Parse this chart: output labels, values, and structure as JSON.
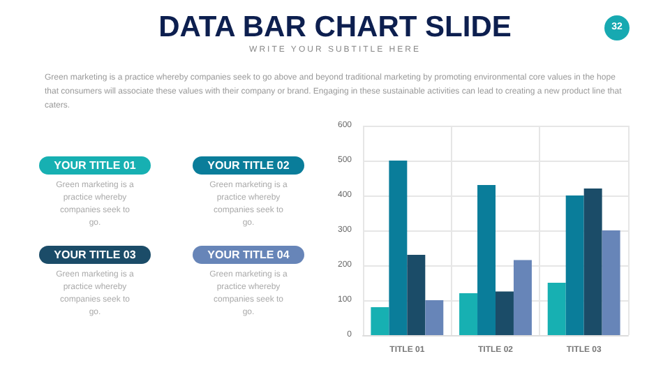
{
  "chart_data": {
    "type": "bar",
    "title": "DATA BAR CHART SLIDE",
    "subtitle": "WRITE YOUR SUBTITLE HERE",
    "annotations": [
      "32",
      "Green marketing is a practice whereby companies seek to go above and beyond traditional marketing by promoting environmental core values in the hope that consumers will associate these values with their company or brand. Engaging in these sustainable activities can lead to creating a new product line that caters.",
      "Green marketing is a practice whereby companies seek to go.",
      "Green marketing is a practice whereby companies seek to go.",
      "Green marketing is a practice whereby companies seek to go.",
      "Green marketing is a practice whereby companies seek to go."
    ],
    "categories": [
      "TITLE 01",
      "TITLE 02",
      "TITLE 03"
    ],
    "series": [
      {
        "name": "YOUR TITLE 01",
        "color": "#17b0b2",
        "values": [
          80,
          120,
          150
        ]
      },
      {
        "name": "YOUR TITLE 02",
        "color": "#0a7d9a",
        "values": [
          500,
          430,
          400
        ]
      },
      {
        "name": "YOUR TITLE 03",
        "color": "#1b4c68",
        "values": [
          230,
          125,
          420
        ]
      },
      {
        "name": "YOUR TITLE 04",
        "color": "#6785b8",
        "values": [
          100,
          215,
          300
        ]
      }
    ],
    "ylim": [
      0,
      600
    ],
    "yticks": [
      0,
      100,
      200,
      300,
      400,
      500,
      600
    ],
    "grid": true,
    "legend": "left"
  }
}
